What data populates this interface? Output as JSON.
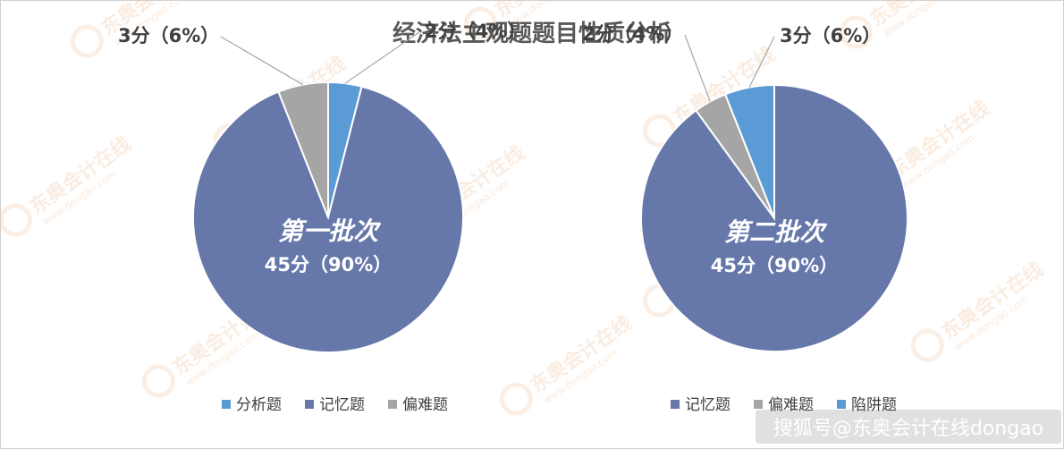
{
  "title": "经济法主观题题目性质分析",
  "colors": {
    "分析题": "#5b9bd5",
    "记忆题": "#6677aa",
    "偏难题": "#a5a5a5",
    "陷阱题": "#5b9bd5"
  },
  "chart_data": [
    {
      "type": "pie",
      "center_title": "第一批次",
      "slices": [
        {
          "name": "分析题",
          "value": 2,
          "label": "2分（4%）"
        },
        {
          "name": "记忆题",
          "value": 45,
          "label": "45分（90%）"
        },
        {
          "name": "偏难题",
          "value": 3,
          "label": "3分（6%）"
        }
      ],
      "legend": [
        "分析题",
        "记忆题",
        "偏难题"
      ],
      "legend_position": "bottom"
    },
    {
      "type": "pie",
      "center_title": "第二批次",
      "slices": [
        {
          "name": "记忆题",
          "value": 45,
          "label": "45分（90%）"
        },
        {
          "name": "偏难题",
          "value": 2,
          "label": "2分（4%）"
        },
        {
          "name": "陷阱题",
          "value": 3,
          "label": "3分（6%）"
        }
      ],
      "legend": [
        "记忆题",
        "偏难题",
        "陷阱题"
      ],
      "legend_position": "bottom"
    }
  ],
  "watermark": {
    "brand": "东奥会计在线",
    "url": "www.dongao.com"
  },
  "credit": "搜狐号@东奥会计在线dongao"
}
